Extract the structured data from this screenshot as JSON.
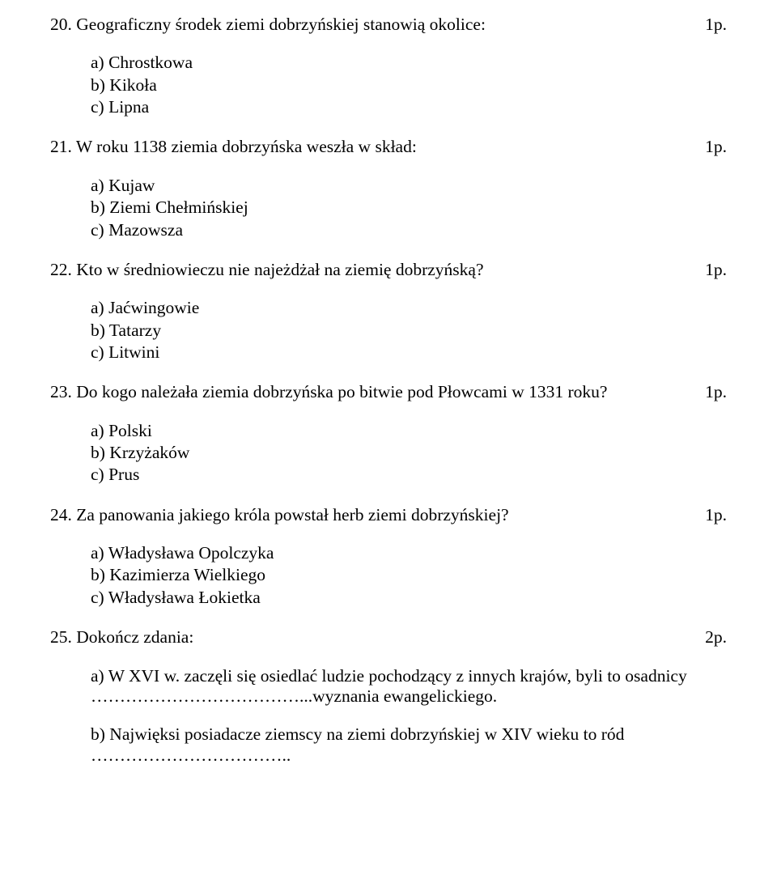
{
  "questions": [
    {
      "num": "20.",
      "text": "Geograficzny środek ziemi dobrzyńskiej stanowią okolice:",
      "points": "1p.",
      "answers": [
        {
          "label": "a)",
          "text": "Chrostkowa"
        },
        {
          "label": "b)",
          "text": "Kikoła"
        },
        {
          "label": "c)",
          "text": "Lipna"
        }
      ]
    },
    {
      "num": "21.",
      "text": "W roku 1138 ziemia dobrzyńska weszła w skład:",
      "points": "1p.",
      "answers": [
        {
          "label": "a)",
          "text": "Kujaw"
        },
        {
          "label": "b)",
          "text": "Ziemi Chełmińskiej"
        },
        {
          "label": "c)",
          "text": "Mazowsza"
        }
      ]
    },
    {
      "num": "22.",
      "text": "Kto w średniowieczu nie najeżdżał na ziemię dobrzyńską?",
      "points": "1p.",
      "answers": [
        {
          "label": "a)",
          "text": "Jaćwingowie"
        },
        {
          "label": "b)",
          "text": "Tatarzy"
        },
        {
          "label": "c)",
          "text": "Litwini"
        }
      ]
    },
    {
      "num": "23.",
      "text": "Do kogo należała ziemia dobrzyńska po bitwie pod Płowcami w 1331 roku?",
      "points": "1p.",
      "answers": [
        {
          "label": "a)",
          "text": "Polski"
        },
        {
          "label": "b)",
          "text": "Krzyżaków"
        },
        {
          "label": "c)",
          "text": "Prus"
        }
      ]
    },
    {
      "num": "24.",
      "text": "Za panowania jakiego króla powstał herb ziemi dobrzyńskiej?",
      "points": "1p.",
      "answers": [
        {
          "label": "a)",
          "text": "Władysława Opolczyka"
        },
        {
          "label": "b)",
          "text": "Kazimierza Wielkiego"
        },
        {
          "label": "c)",
          "text": "Władysława Łokietka"
        }
      ]
    }
  ],
  "q25": {
    "num": "25.",
    "text": "Dokończ zdania:",
    "points": "2p.",
    "subA": {
      "label": "a)",
      "line1": "W XVI w. zaczęli się osiedlać ludzie pochodzący z innych krajów, byli to osadnicy",
      "dots1": "………………………………...",
      "line2": "wyznania ewangelickiego."
    },
    "subB": {
      "label": "b)",
      "line1": "Najwięksi posiadacze ziemscy na ziemi dobrzyńskiej w XIV wieku to ród",
      "dots1": "…………………………….."
    }
  }
}
